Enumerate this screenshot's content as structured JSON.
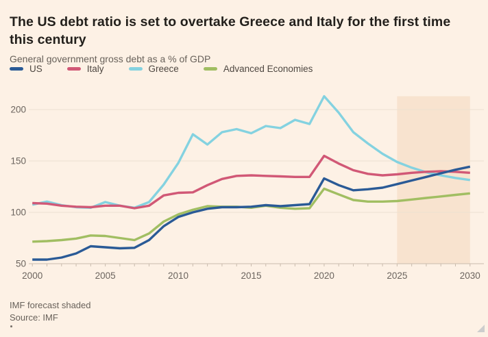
{
  "header": {
    "title": "The US debt ratio is set to overtake Greece and Italy for the first time this century",
    "subtitle": "General government gross debt as a % of GDP"
  },
  "footer": {
    "note": "IMF forecast shaded",
    "source": "Source: IMF"
  },
  "colors": {
    "background": "#fdf1e5",
    "forecast_shade": "#f8e3cf",
    "gridline": "#ece0d1",
    "axis": "#c9bbad",
    "tick_label": "#6b645e",
    "text_primary": "#23201c",
    "text_secondary": "#68615a"
  },
  "chart_data": {
    "type": "line",
    "title": "The US debt ratio is set to overtake Greece and Italy for the first time this century",
    "subtitle": "General government gross debt as a % of GDP",
    "xlabel": "",
    "ylabel": "% of GDP",
    "x": [
      2000,
      2001,
      2002,
      2003,
      2004,
      2005,
      2006,
      2007,
      2008,
      2009,
      2010,
      2011,
      2012,
      2013,
      2014,
      2015,
      2016,
      2017,
      2018,
      2019,
      2020,
      2021,
      2022,
      2023,
      2024,
      2025,
      2026,
      2027,
      2028,
      2029,
      2030
    ],
    "series": [
      {
        "name": "US",
        "color": "#2a5a96",
        "values": [
          54,
          54,
          56,
          60,
          67,
          66,
          65,
          65.5,
          73,
          86.5,
          95.5,
          100,
          103.5,
          105,
          105,
          105.5,
          107,
          106,
          107,
          108,
          133,
          126.5,
          121.5,
          122.5,
          124,
          127.5,
          131,
          134.5,
          138,
          141.5,
          144.5
        ]
      },
      {
        "name": "Italy",
        "color": "#d15876",
        "values": [
          109,
          108.5,
          106.5,
          105.5,
          105,
          106.5,
          106.5,
          104,
          106.5,
          116.5,
          119,
          119.5,
          126.5,
          132.5,
          135.5,
          136,
          135.5,
          135,
          134.5,
          134.5,
          155,
          147.5,
          141,
          137.5,
          136,
          137,
          138.5,
          139.5,
          140,
          139.5,
          138.5
        ]
      },
      {
        "name": "Greece",
        "color": "#84d2e0",
        "values": [
          107.5,
          110.5,
          107,
          105,
          104.5,
          110,
          106.5,
          104.5,
          110,
          127,
          148,
          176,
          166,
          178,
          181,
          177,
          184,
          182,
          190,
          186,
          213,
          197,
          178,
          167,
          157,
          149,
          143.5,
          139,
          136,
          133.5,
          131.5
        ]
      },
      {
        "name": "Advanced Economies",
        "color": "#a1be62",
        "values": [
          71.5,
          72,
          73,
          74.5,
          77.5,
          77,
          75,
          73,
          79.5,
          91,
          98,
          102.5,
          106,
          105.5,
          105.5,
          104.5,
          106.5,
          104.5,
          103.5,
          104,
          123,
          117.5,
          112,
          110.5,
          110.5,
          111,
          112.5,
          114,
          115.5,
          117,
          118.5
        ]
      }
    ],
    "yticks": [
      50,
      100,
      150,
      200
    ],
    "xticks": [
      2000,
      2005,
      2010,
      2015,
      2020,
      2025,
      2030
    ],
    "ylim": [
      50,
      213
    ],
    "xlim": [
      2000,
      2030
    ],
    "grid": "horizontal",
    "legend_position": "top",
    "forecast_region": {
      "start": 2025,
      "end": 2030,
      "note": "IMF forecast shaded"
    }
  }
}
